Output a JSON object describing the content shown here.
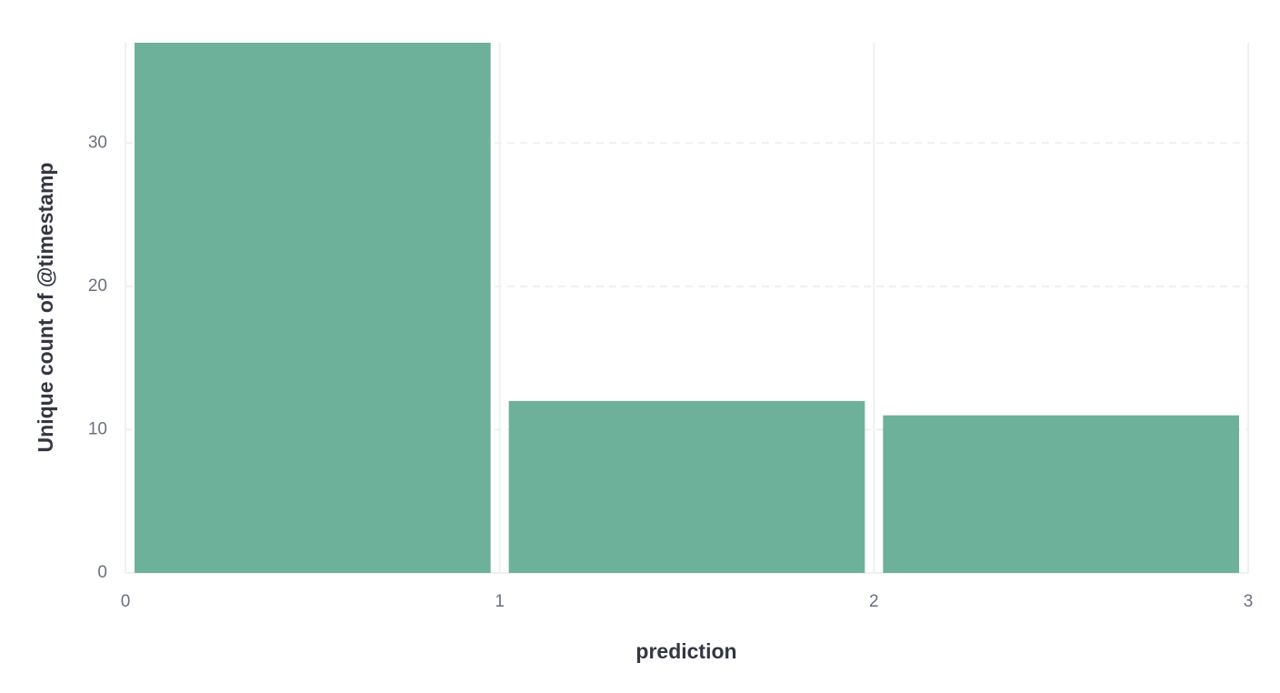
{
  "chart_data": {
    "type": "bar",
    "title": "",
    "xlabel": "prediction",
    "ylabel": "Unique count of @timestamp",
    "bins": [
      {
        "x_start": 0,
        "x_end": 1,
        "value": 37
      },
      {
        "x_start": 1,
        "x_end": 2,
        "value": 12
      },
      {
        "x_start": 2,
        "x_end": 3,
        "value": 11
      }
    ],
    "x_ticks": [
      0,
      1,
      2,
      3
    ],
    "y_ticks": [
      0,
      10,
      20,
      30
    ],
    "xlim": [
      0,
      3
    ],
    "ylim": [
      0,
      37
    ],
    "grid": true,
    "legend": "none",
    "colors": {
      "bar": "#6db19a",
      "grid": "#eef0f3",
      "tick_text": "#69707d",
      "title_text": "#343741"
    }
  }
}
